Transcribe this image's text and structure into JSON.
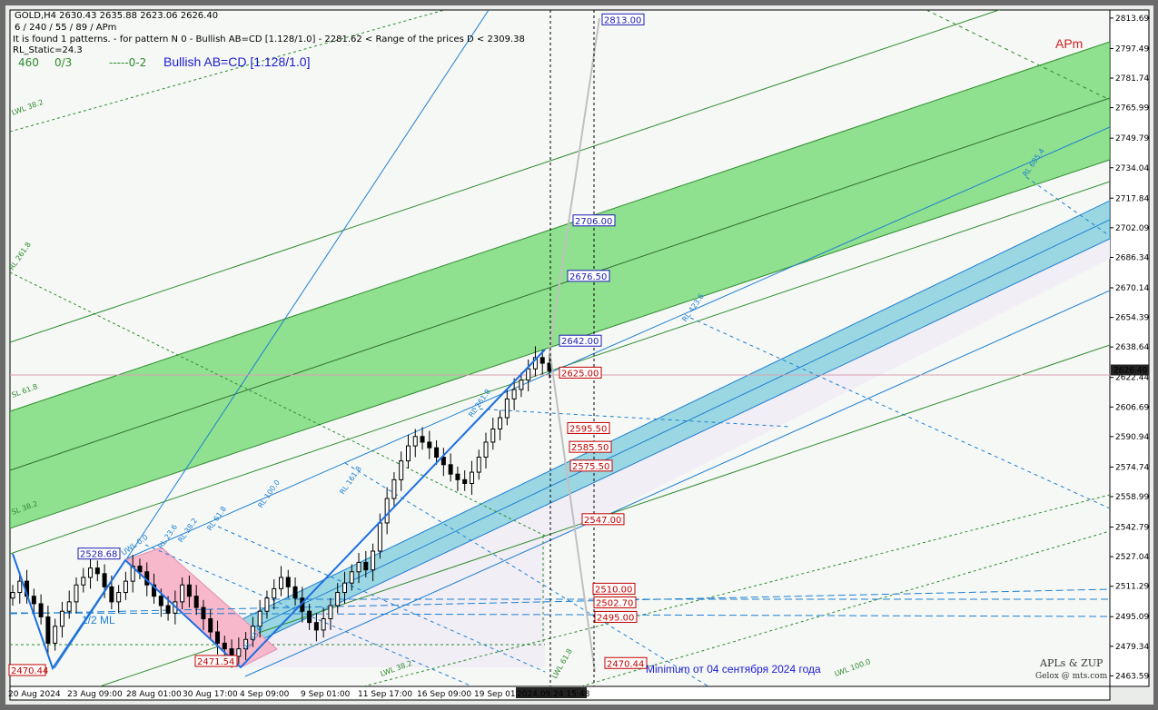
{
  "header": {
    "symbol_line": "GOLD,H4  2630.43 2635.88 2623.06 2626.40",
    "params_line": "6 / 240 / 55 / 89 / APm",
    "pattern_line": "It is found 1 patterns. - for pattern N 0 - Bullish AB=CD [1.128/1.0] - 2281.62 < Range of the prices D < 2309.38",
    "static_line": "RL_Static=24.3",
    "counter_a": "460",
    "counter_b": "0/3",
    "counter_c": "-----0-2",
    "pattern_name": "Bullish AB=CD [1.128/1.0]",
    "apm_label": "APm"
  },
  "colors": {
    "background": "#f6f8f6",
    "green_band": "#8fe08f",
    "blue_band": "#9ad7e3",
    "pink": "#f7b8cc",
    "blue_level": "#1a1ab0",
    "red_level": "#c00000"
  },
  "footer": {
    "brand": "APLs & ZUP",
    "author": "Gelox @ mts.com",
    "minimum_note": "Minimum от 04 сентября 2024 года"
  },
  "chart_data": {
    "type": "candlestick",
    "symbol": "GOLD",
    "timeframe": "H4",
    "title": "GOLD,H4",
    "ylim": [
      2458,
      2818
    ],
    "y_ticks": [
      "2813.69",
      "2797.49",
      "2781.74",
      "2765.99",
      "2749.79",
      "2734.04",
      "2717.84",
      "2702.09",
      "2686.34",
      "2670.14",
      "2654.39",
      "2638.64",
      "2622.44",
      "2606.69",
      "2590.94",
      "2574.74",
      "2558.99",
      "2542.79",
      "2527.04",
      "2511.29",
      "2495.09",
      "2479.34",
      "2463.59"
    ],
    "current_price": "2626.40",
    "x_ticks": [
      "20 Aug 2024",
      "23 Aug 09:00",
      "28 Aug 01:00",
      "30 Aug 17:00",
      "4 Sep 09:00",
      "9 Sep 01:00",
      "11 Sep 17:00",
      "16 Sep 09:00",
      "19 Sep 01:00",
      "2024.09.24 15:48"
    ],
    "levels_blue": [
      {
        "label": "2813.00",
        "value": 2813.0
      },
      {
        "label": "2706.00",
        "value": 2706.0
      },
      {
        "label": "2676.50",
        "value": 2676.5
      },
      {
        "label": "2642.00",
        "value": 2642.0
      },
      {
        "label": "2528.68",
        "value": 2528.68
      }
    ],
    "levels_red": [
      {
        "label": "2625.00",
        "value": 2625.0
      },
      {
        "label": "2595.50",
        "value": 2595.5
      },
      {
        "label": "2585.50",
        "value": 2585.5
      },
      {
        "label": "2575.50",
        "value": 2575.5
      },
      {
        "label": "2547.00",
        "value": 2547.0
      },
      {
        "label": "2510.00",
        "value": 2510.0
      },
      {
        "label": "2502.70",
        "value": 2502.7
      },
      {
        "label": "2495.00",
        "value": 2495.0
      },
      {
        "label": "2470.44",
        "value": 2470.44
      },
      {
        "label": "2471.54",
        "value": 2471.54
      }
    ],
    "fan_labels": {
      "green": [
        "LWL 38.2",
        "RL 261.8",
        "SL 61.8",
        "SL 38.2",
        "LWL 38.2",
        "LWL 61.8",
        "LWL 100.0"
      ],
      "blue": [
        "UWL 0.0",
        "RL 23.6",
        "RL 38.2",
        "RL 61.8",
        "RL 100.0",
        "RL 161.8",
        "RL 261.8",
        "RL 423.6",
        "RL 685.4",
        "RL 23.6"
      ],
      "ml_label": "1/2 ML"
    },
    "candles_close": [
      2508,
      2514,
      2506,
      2502,
      2495,
      2481,
      2490,
      2498,
      2503,
      2512,
      2516,
      2521,
      2518,
      2511,
      2503,
      2508,
      2514,
      2522,
      2519,
      2512,
      2506,
      2501,
      2497,
      2503,
      2512,
      2506,
      2500,
      2494,
      2487,
      2481,
      2478,
      2474,
      2478,
      2483,
      2490,
      2498,
      2505,
      2510,
      2516,
      2511,
      2505,
      2498,
      2492,
      2488,
      2494,
      2501,
      2508,
      2513,
      2519,
      2524,
      2520,
      2530,
      2545,
      2558,
      2568,
      2578,
      2586,
      2591,
      2588,
      2585,
      2580,
      2576,
      2571,
      2568,
      2566,
      2572,
      2580,
      2588,
      2595,
      2601,
      2611,
      2616,
      2621,
      2627,
      2633,
      2630,
      2626
    ]
  }
}
